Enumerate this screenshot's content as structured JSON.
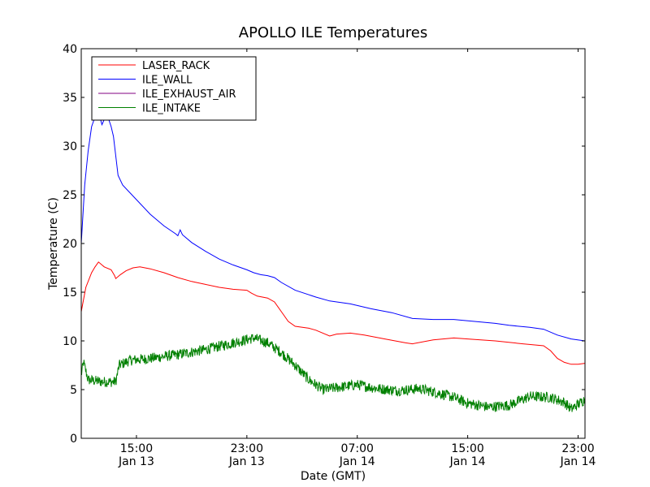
{
  "chart_data": {
    "type": "line",
    "title": "APOLLO ILE Temperatures",
    "xlabel": "Date (GMT)",
    "ylabel": "Temperature (C)",
    "x_range": [
      "2013-01-13T11:00",
      "2013-01-14T23:30"
    ],
    "ylim": [
      0,
      40
    ],
    "yticks": [
      0,
      5,
      10,
      15,
      20,
      25,
      30,
      35,
      40
    ],
    "xticks": [
      {
        "at": "2013-01-13T15:00",
        "time": "15:00",
        "date": "Jan 13"
      },
      {
        "at": "2013-01-13T23:00",
        "time": "23:00",
        "date": "Jan 13"
      },
      {
        "at": "2013-01-14T07:00",
        "time": "07:00",
        "date": "Jan 14"
      },
      {
        "at": "2013-01-14T15:00",
        "time": "15:00",
        "date": "Jan 14"
      },
      {
        "at": "2013-01-14T23:00",
        "time": "23:00",
        "date": "Jan 14"
      }
    ],
    "grid": false,
    "legend_position": "top-left",
    "series": [
      {
        "name": "LASER_RACK",
        "color": "#ff0000",
        "noise": 0,
        "points": [
          [
            "2013-01-13T11:00",
            13.0
          ],
          [
            "2013-01-13T11:20",
            15.5
          ],
          [
            "2013-01-13T11:45",
            17.0
          ],
          [
            "2013-01-13T12:00",
            17.6
          ],
          [
            "2013-01-13T12:15",
            18.1
          ],
          [
            "2013-01-13T12:40",
            17.6
          ],
          [
            "2013-01-13T13:10",
            17.3
          ],
          [
            "2013-01-13T13:25",
            16.7
          ],
          [
            "2013-01-13T13:30",
            16.4
          ],
          [
            "2013-01-13T13:50",
            16.8
          ],
          [
            "2013-01-13T14:15",
            17.2
          ],
          [
            "2013-01-13T14:45",
            17.5
          ],
          [
            "2013-01-13T15:15",
            17.6
          ],
          [
            "2013-01-13T16:00",
            17.4
          ],
          [
            "2013-01-13T17:00",
            17.0
          ],
          [
            "2013-01-13T18:00",
            16.5
          ],
          [
            "2013-01-13T19:00",
            16.1
          ],
          [
            "2013-01-13T20:00",
            15.8
          ],
          [
            "2013-01-13T21:00",
            15.5
          ],
          [
            "2013-01-13T22:00",
            15.3
          ],
          [
            "2013-01-13T23:00",
            15.2
          ],
          [
            "2013-01-13T23:20",
            14.9
          ],
          [
            "2013-01-13T23:45",
            14.6
          ],
          [
            "2013-01-14T00:30",
            14.4
          ],
          [
            "2013-01-14T01:00",
            14.0
          ],
          [
            "2013-01-14T01:30",
            13.0
          ],
          [
            "2013-01-14T02:00",
            12.0
          ],
          [
            "2013-01-14T02:30",
            11.5
          ],
          [
            "2013-01-14T03:30",
            11.3
          ],
          [
            "2013-01-14T04:00",
            11.1
          ],
          [
            "2013-01-14T05:00",
            10.5
          ],
          [
            "2013-01-14T05:30",
            10.7
          ],
          [
            "2013-01-14T06:30",
            10.8
          ],
          [
            "2013-01-14T07:30",
            10.6
          ],
          [
            "2013-01-14T09:00",
            10.2
          ],
          [
            "2013-01-14T10:30",
            9.8
          ],
          [
            "2013-01-14T11:00",
            9.7
          ],
          [
            "2013-01-14T12:30",
            10.1
          ],
          [
            "2013-01-14T14:00",
            10.3
          ],
          [
            "2013-01-14T15:00",
            10.2
          ],
          [
            "2013-01-14T17:00",
            10.0
          ],
          [
            "2013-01-14T19:00",
            9.7
          ],
          [
            "2013-01-14T20:30",
            9.5
          ],
          [
            "2013-01-14T21:00",
            9.0
          ],
          [
            "2013-01-14T21:30",
            8.2
          ],
          [
            "2013-01-14T22:00",
            7.8
          ],
          [
            "2013-01-14T22:30",
            7.6
          ],
          [
            "2013-01-14T23:00",
            7.6
          ],
          [
            "2013-01-14T23:30",
            7.7
          ]
        ]
      },
      {
        "name": "ILE_WALL",
        "color": "#0000ff",
        "noise": 0,
        "points": [
          [
            "2013-01-13T11:00",
            20.0
          ],
          [
            "2013-01-13T11:15",
            26.0
          ],
          [
            "2013-01-13T11:30",
            29.5
          ],
          [
            "2013-01-13T11:45",
            32.0
          ],
          [
            "2013-01-13T12:00",
            33.0
          ],
          [
            "2013-01-13T12:15",
            33.5
          ],
          [
            "2013-01-13T12:30",
            32.2
          ],
          [
            "2013-01-13T12:45",
            33.0
          ],
          [
            "2013-01-13T13:00",
            32.7
          ],
          [
            "2013-01-13T13:10",
            32.0
          ],
          [
            "2013-01-13T13:20",
            31.0
          ],
          [
            "2013-01-13T13:30",
            29.0
          ],
          [
            "2013-01-13T13:40",
            27.0
          ],
          [
            "2013-01-13T14:00",
            26.0
          ],
          [
            "2013-01-13T15:00",
            24.5
          ],
          [
            "2013-01-13T16:00",
            23.0
          ],
          [
            "2013-01-13T17:00",
            21.8
          ],
          [
            "2013-01-13T17:50",
            21.0
          ],
          [
            "2013-01-13T18:00",
            20.8
          ],
          [
            "2013-01-13T18:10",
            21.4
          ],
          [
            "2013-01-13T18:20",
            20.9
          ],
          [
            "2013-01-13T19:00",
            20.1
          ],
          [
            "2013-01-13T20:00",
            19.2
          ],
          [
            "2013-01-13T21:00",
            18.4
          ],
          [
            "2013-01-13T22:00",
            17.8
          ],
          [
            "2013-01-13T23:00",
            17.3
          ],
          [
            "2013-01-13T23:30",
            17.0
          ],
          [
            "2013-01-14T00:00",
            16.8
          ],
          [
            "2013-01-14T00:30",
            16.7
          ],
          [
            "2013-01-14T01:00",
            16.5
          ],
          [
            "2013-01-14T01:30",
            16.0
          ],
          [
            "2013-01-14T02:30",
            15.2
          ],
          [
            "2013-01-14T04:00",
            14.5
          ],
          [
            "2013-01-14T05:00",
            14.1
          ],
          [
            "2013-01-14T06:30",
            13.8
          ],
          [
            "2013-01-14T08:00",
            13.3
          ],
          [
            "2013-01-14T09:30",
            12.9
          ],
          [
            "2013-01-14T11:00",
            12.3
          ],
          [
            "2013-01-14T12:30",
            12.2
          ],
          [
            "2013-01-14T14:00",
            12.2
          ],
          [
            "2013-01-14T15:30",
            12.0
          ],
          [
            "2013-01-14T17:00",
            11.8
          ],
          [
            "2013-01-14T18:00",
            11.6
          ],
          [
            "2013-01-14T19:30",
            11.4
          ],
          [
            "2013-01-14T20:30",
            11.2
          ],
          [
            "2013-01-14T21:30",
            10.6
          ],
          [
            "2013-01-14T22:30",
            10.2
          ],
          [
            "2013-01-14T23:30",
            10.0
          ]
        ]
      },
      {
        "name": "ILE_EXHAUST_AIR",
        "color": "#800080",
        "noise": 0,
        "points": []
      },
      {
        "name": "ILE_INTAKE",
        "color": "#008000",
        "noise": 0.55,
        "points": [
          [
            "2013-01-13T11:00",
            6.5
          ],
          [
            "2013-01-13T11:10",
            7.8
          ],
          [
            "2013-01-13T11:30",
            6.0
          ],
          [
            "2013-01-13T12:30",
            5.8
          ],
          [
            "2013-01-13T13:30",
            5.8
          ],
          [
            "2013-01-13T13:45",
            7.5
          ],
          [
            "2013-01-13T14:30",
            8.0
          ],
          [
            "2013-01-13T16:00",
            8.2
          ],
          [
            "2013-01-13T18:00",
            8.6
          ],
          [
            "2013-01-13T20:00",
            9.1
          ],
          [
            "2013-01-13T22:00",
            9.8
          ],
          [
            "2013-01-13T23:30",
            10.3
          ],
          [
            "2013-01-14T00:30",
            9.8
          ],
          [
            "2013-01-14T01:30",
            8.8
          ],
          [
            "2013-01-14T02:30",
            7.5
          ],
          [
            "2013-01-14T03:30",
            6.0
          ],
          [
            "2013-01-14T04:30",
            5.0
          ],
          [
            "2013-01-14T05:30",
            5.2
          ],
          [
            "2013-01-14T07:00",
            5.5
          ],
          [
            "2013-01-14T08:30",
            5.1
          ],
          [
            "2013-01-14T10:00",
            4.9
          ],
          [
            "2013-01-14T11:30",
            5.1
          ],
          [
            "2013-01-14T13:00",
            4.6
          ],
          [
            "2013-01-14T14:00",
            4.2
          ],
          [
            "2013-01-14T15:00",
            3.6
          ],
          [
            "2013-01-14T16:30",
            3.2
          ],
          [
            "2013-01-14T18:00",
            3.4
          ],
          [
            "2013-01-14T19:30",
            4.3
          ],
          [
            "2013-01-14T21:00",
            4.2
          ],
          [
            "2013-01-14T22:00",
            3.7
          ],
          [
            "2013-01-14T22:30",
            3.0
          ],
          [
            "2013-01-14T23:00",
            3.5
          ],
          [
            "2013-01-14T23:30",
            4.0
          ]
        ]
      }
    ]
  }
}
